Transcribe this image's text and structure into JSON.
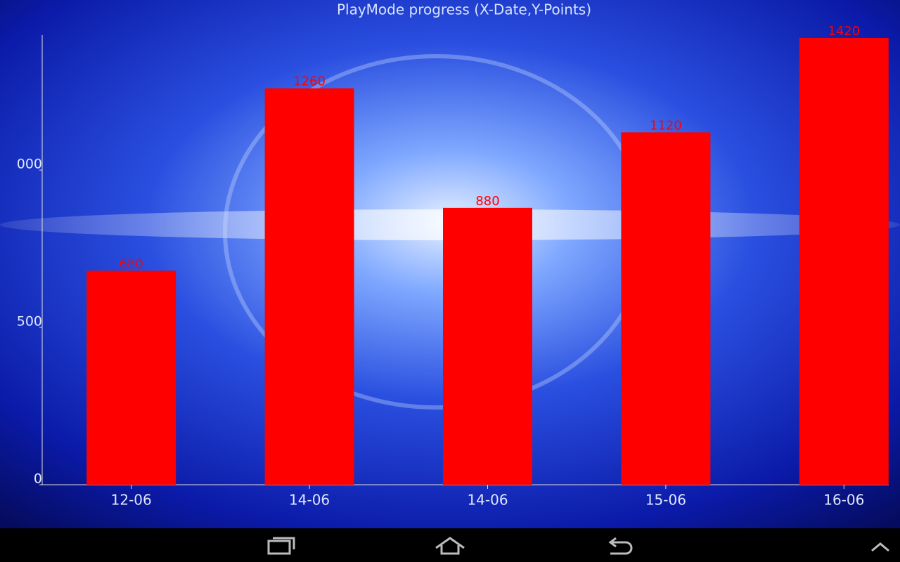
{
  "chart_data": {
    "type": "bar",
    "title": "PlayMode progress (X-Date,Y-Points)",
    "categories": [
      "12-06",
      "14-06",
      "14-06",
      "15-06",
      "16-06"
    ],
    "values": [
      680,
      1260,
      880,
      1120,
      1420
    ],
    "color": "#ff0000",
    "ylim": [
      0,
      1420
    ],
    "yticks": [
      0,
      500,
      {
        "value": 1000,
        "label": "000"
      }
    ]
  }
}
